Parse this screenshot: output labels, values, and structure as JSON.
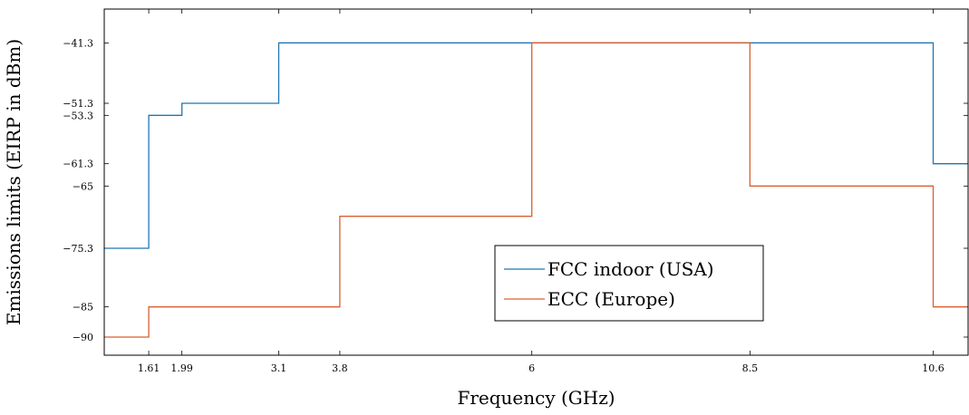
{
  "chart_data": {
    "type": "line",
    "step": true,
    "title": "",
    "xlabel": "Frequency (GHz)",
    "ylabel": "Emissions limits (EIRP in dBm)",
    "xlim": [
      1.1,
      11.0
    ],
    "ylim": [
      -93,
      -35.7
    ],
    "xticks": [
      1.61,
      1.99,
      3.1,
      3.8,
      6,
      8.5,
      10.6
    ],
    "xtick_labels": [
      "1.61",
      "1.99",
      "3.1",
      "3.8",
      "6",
      "8.5",
      "10.6"
    ],
    "yticks": [
      -41.3,
      -51.3,
      -53.3,
      -61.3,
      -65,
      -75.3,
      -85,
      -90
    ],
    "ytick_labels": [
      "−41.3",
      "−51.3",
      "−53.3",
      "−61.3",
      "−65",
      "−75.3",
      "−85",
      "−90"
    ],
    "grid": false,
    "legend_position": "lower-center",
    "series": [
      {
        "name": "FCC indoor (USA)",
        "color": "#1f77b4",
        "x": [
          1.1,
          1.61,
          1.61,
          1.99,
          1.99,
          3.1,
          3.1,
          10.6,
          10.6,
          11.0
        ],
        "y": [
          -75.3,
          -75.3,
          -53.3,
          -53.3,
          -51.3,
          -51.3,
          -41.3,
          -41.3,
          -61.3,
          -61.3
        ]
      },
      {
        "name": "ECC (Europe)",
        "color": "#d95f30",
        "x": [
          1.1,
          1.61,
          1.61,
          3.8,
          3.8,
          6.0,
          6.0,
          8.5,
          8.5,
          10.6,
          10.6,
          11.0
        ],
        "y": [
          -90,
          -90,
          -85,
          -85,
          -70,
          -70,
          -41.3,
          -41.3,
          -65,
          -65,
          -85,
          -85
        ]
      }
    ]
  }
}
